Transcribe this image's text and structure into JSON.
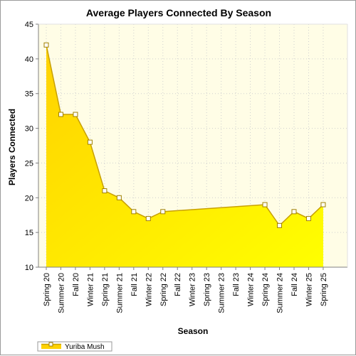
{
  "chart_data": {
    "type": "area",
    "title": "Average Players Connected By Season",
    "xlabel": "Season",
    "ylabel": "Players Connected",
    "ylim": [
      10,
      45
    ],
    "yticks": [
      10,
      15,
      20,
      25,
      30,
      35,
      40,
      45
    ],
    "grid": true,
    "legend_position": "bottom-left",
    "categories": [
      "Spring 20",
      "Summer 20",
      "Fall 20",
      "Winter 21",
      "Spring 21",
      "Summer 21",
      "Fall 21",
      "Winter 22",
      "Spring 22",
      "Fall 22",
      "Winter 23",
      "Spring 23",
      "Summer 23",
      "Fall 23",
      "Winter 24",
      "Spring 24",
      "Summer 24",
      "Fall 24",
      "Winter 25",
      "Spring 25"
    ],
    "series": [
      {
        "name": "Yuriba Mush",
        "color": "#ffd700",
        "values": [
          42,
          32,
          32,
          28,
          21,
          20,
          18,
          17,
          18,
          null,
          null,
          null,
          null,
          null,
          null,
          19,
          16,
          18,
          17,
          19
        ]
      }
    ],
    "colors": {
      "plot_background": "#fffde6",
      "area_top": "#ffd200",
      "area_bottom": "#ffff00",
      "line": "#c8a000",
      "marker_fill": "#ffffff",
      "marker_stroke": "#a08000",
      "gridline": "#cfcfcf"
    }
  }
}
